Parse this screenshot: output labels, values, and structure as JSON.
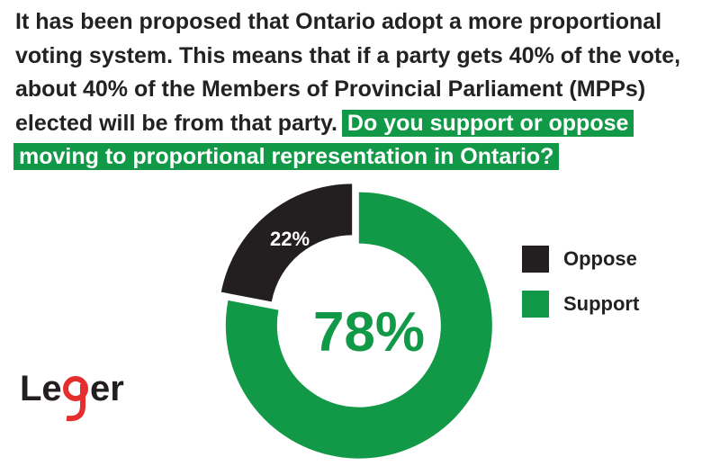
{
  "question": {
    "text": "It has been proposed that Ontario adopt a more proportional voting system. This means that if a party gets 40% of the vote, about 40% of the Members of Provincial Parliament (MPPs) elected will be  from that party.",
    "highlight": "Do you support or oppose moving to proportional representation in Ontario?"
  },
  "logo": {
    "text": "Leger"
  },
  "colors": {
    "support": "#129947",
    "oppose": "#231f20",
    "text": "#222222",
    "logo_accent": "#e52e2e"
  },
  "chart_data": {
    "type": "pie",
    "donut": true,
    "categories": [
      "Oppose",
      "Support"
    ],
    "values": [
      22,
      78
    ],
    "data_labels": [
      "22%",
      "78%"
    ],
    "center_label": "78%",
    "legend": {
      "position": "right",
      "entries": [
        "Oppose",
        "Support"
      ]
    }
  }
}
